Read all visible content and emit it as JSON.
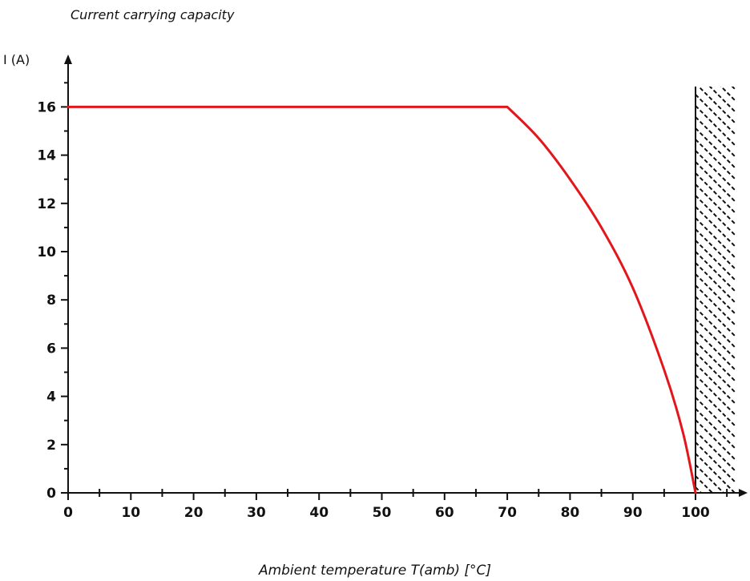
{
  "chart_data": {
    "type": "line",
    "title": "Current carrying capacity",
    "ylabel": "I (A)",
    "xlabel": "Ambient temperature T(amb) [°C]",
    "x_ticks": [
      "0",
      "10",
      "20",
      "30",
      "40",
      "50",
      "60",
      "70",
      "80",
      "90",
      "100"
    ],
    "y_ticks": [
      "0",
      "2",
      "4",
      "6",
      "8",
      "10",
      "12",
      "14",
      "16"
    ],
    "xlim": [
      0,
      107
    ],
    "ylim": [
      0,
      17.5
    ],
    "grid": false,
    "legend": "none",
    "series": [
      {
        "color": "#e3161b",
        "x": [
          0,
          70,
          75,
          80,
          85,
          90,
          95,
          98,
          100
        ],
        "y": [
          16,
          16,
          14.7,
          13.0,
          11.0,
          8.5,
          5.1,
          2.5,
          0
        ]
      }
    ],
    "limit": {
      "x_start": 100,
      "x_end": 106,
      "style": "hatched",
      "color": "#111111"
    }
  }
}
